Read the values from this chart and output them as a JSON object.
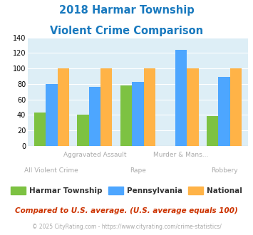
{
  "title_line1": "2018 Harmar Township",
  "title_line2": "Violent Crime Comparison",
  "categories": [
    "All Violent Crime",
    "Aggravated Assault",
    "Rape",
    "Murder & Mans...",
    "Robbery"
  ],
  "harmar": [
    43,
    40,
    78,
    0,
    38
  ],
  "pennsylvania": [
    80,
    76,
    83,
    124,
    89
  ],
  "national": [
    100,
    100,
    100,
    100,
    100
  ],
  "harmar_color": "#7dc242",
  "pennsylvania_color": "#4da6ff",
  "national_color": "#ffb347",
  "title_color": "#1a7abf",
  "bg_color": "#ddeef6",
  "ylim": [
    0,
    140
  ],
  "yticks": [
    0,
    20,
    40,
    60,
    80,
    100,
    120,
    140
  ],
  "subtitle_text": "Compared to U.S. average. (U.S. average equals 100)",
  "footer_text": "© 2025 CityRating.com - https://www.cityrating.com/crime-statistics/",
  "legend_labels": [
    "Harmar Township",
    "Pennsylvania",
    "National"
  ],
  "top_xlabels": [
    [
      1,
      "Aggravated Assault"
    ],
    [
      3,
      "Murder & Mans..."
    ]
  ],
  "bot_xlabels": [
    [
      0,
      "All Violent Crime"
    ],
    [
      2,
      "Rape"
    ],
    [
      4,
      "Robbery"
    ]
  ],
  "xlabel_color": "#aaaaaa",
  "subtitle_color": "#cc3300",
  "footer_color": "#aaaaaa"
}
